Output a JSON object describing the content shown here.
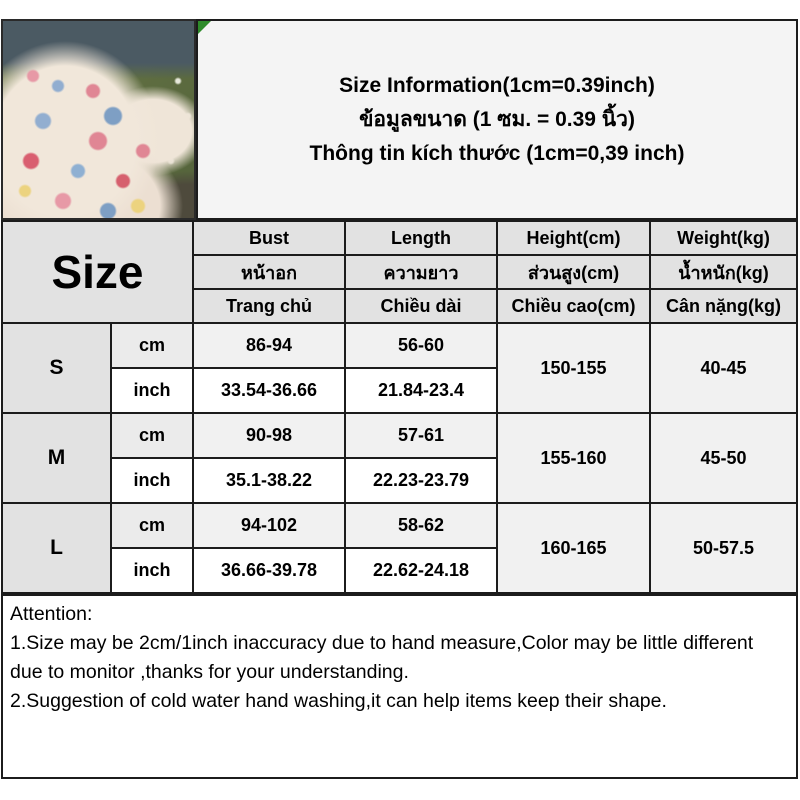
{
  "title": {
    "en": "Size Information(1cm=0.39inch)",
    "th": "ข้อมูลขนาด (1 ซม. = 0.39 นิ้ว)",
    "vi": "Thông tin kích thước (1cm=0,39 inch)"
  },
  "table": {
    "size_label": "Size",
    "columns": {
      "bust": {
        "en": "Bust",
        "th": "หน้าอก",
        "vi": "Trang chủ"
      },
      "length": {
        "en": "Length",
        "th": "ความยาว",
        "vi": "Chiều dài"
      },
      "height": {
        "en": "Height(cm)",
        "th": "ส่วนสูง(cm)",
        "vi": "Chiều cao(cm)"
      },
      "weight": {
        "en": "Weight(kg)",
        "th": "น้ำหนัก(kg)",
        "vi": "Cân nặng(kg)"
      }
    },
    "units": {
      "cm": "cm",
      "inch": "inch"
    },
    "rows": [
      {
        "size": "S",
        "bust_cm": "86-94",
        "bust_inch": "33.54-36.66",
        "length_cm": "56-60",
        "length_inch": "21.84-23.4",
        "height": "150-155",
        "weight": "40-45"
      },
      {
        "size": "M",
        "bust_cm": "90-98",
        "bust_inch": "35.1-38.22",
        "length_cm": "57-61",
        "length_inch": "22.23-23.79",
        "height": "155-160",
        "weight": "45-50"
      },
      {
        "size": "L",
        "bust_cm": "94-102",
        "bust_inch": "36.66-39.78",
        "length_cm": "58-62",
        "length_inch": "22.62-24.18",
        "height": "160-165",
        "weight": "50-57.5"
      }
    ]
  },
  "attention": {
    "heading": "Attention:",
    "note1": "1.Size may be 2cm/1inch inaccuracy due to hand measure,Color may be little different due to monitor ,thanks for your understanding.",
    "note2": "2.Suggestion of cold water hand washing,it can help items keep their shape."
  },
  "colors": {
    "accent_green": "#2e8b2a",
    "line_black": "#1c1c1c",
    "header_gray": "#e2e2e2",
    "row_gray": "#f1f1f1",
    "title_bg": "#f4f4f4"
  }
}
